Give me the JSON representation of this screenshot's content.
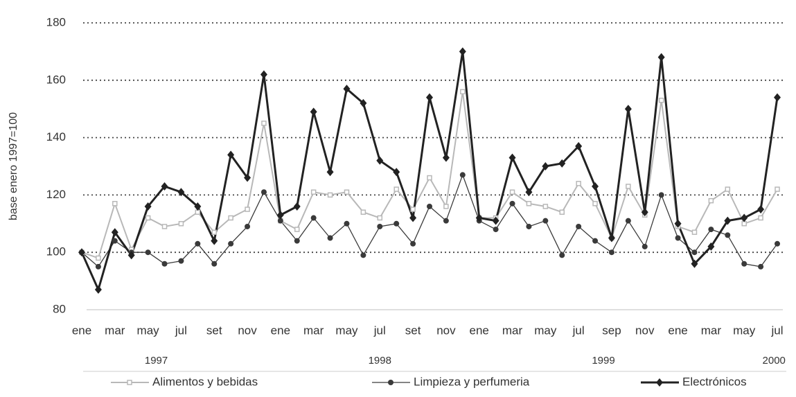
{
  "chart_data": {
    "type": "line",
    "y_label": "base enero 1997=100",
    "categories": [
      "ene",
      null,
      "mar",
      null,
      "may",
      null,
      "jul",
      null,
      "set",
      null,
      "nov",
      null,
      "ene",
      null,
      "mar",
      null,
      "may",
      null,
      "jul",
      null,
      "set",
      null,
      "nov",
      null,
      "ene",
      null,
      "mar",
      null,
      "may",
      null,
      "jul",
      null,
      "sep",
      null,
      "nov",
      null,
      "ene",
      null,
      "mar",
      null,
      "may",
      null,
      "jul"
    ],
    "year_labels": [
      "1997",
      "1998",
      "1999",
      "2000"
    ],
    "series": [
      {
        "name": "Alimentos y bebidas",
        "color": "#b8b8b8",
        "marker": "square",
        "values": [
          100,
          98,
          117,
          101,
          112,
          109,
          110,
          114,
          107,
          112,
          115,
          145,
          111,
          108,
          121,
          120,
          121,
          114,
          112,
          122,
          115,
          126,
          116,
          156,
          112,
          112,
          121,
          117,
          116,
          114,
          124,
          117,
          105,
          123,
          113,
          153,
          109,
          107,
          118,
          122,
          110,
          112,
          122
        ]
      },
      {
        "name": "Limpieza y perfumeria",
        "color": "#3a3a3a",
        "marker": "circle",
        "values": [
          100,
          95,
          104,
          100,
          100,
          96,
          97,
          103,
          96,
          103,
          109,
          121,
          111,
          104,
          112,
          105,
          110,
          99,
          109,
          110,
          103,
          116,
          111,
          127,
          111,
          108,
          117,
          109,
          111,
          99,
          109,
          104,
          100,
          111,
          102,
          120,
          105,
          100,
          108,
          106,
          96,
          95,
          103
        ]
      },
      {
        "name": "Electrónicos",
        "color": "#222222",
        "marker": "diamond",
        "values": [
          100,
          87,
          107,
          99,
          116,
          123,
          121,
          116,
          104,
          134,
          126,
          162,
          113,
          116,
          149,
          128,
          157,
          152,
          132,
          128,
          112,
          154,
          133,
          170,
          112,
          111,
          133,
          121,
          130,
          131,
          137,
          123,
          105,
          150,
          114,
          168,
          110,
          96,
          102,
          111,
          112,
          115,
          154
        ]
      }
    ],
    "ylim": [
      80,
      180
    ],
    "yticks": [
      80,
      100,
      120,
      140,
      160,
      180
    ],
    "grid": true
  }
}
